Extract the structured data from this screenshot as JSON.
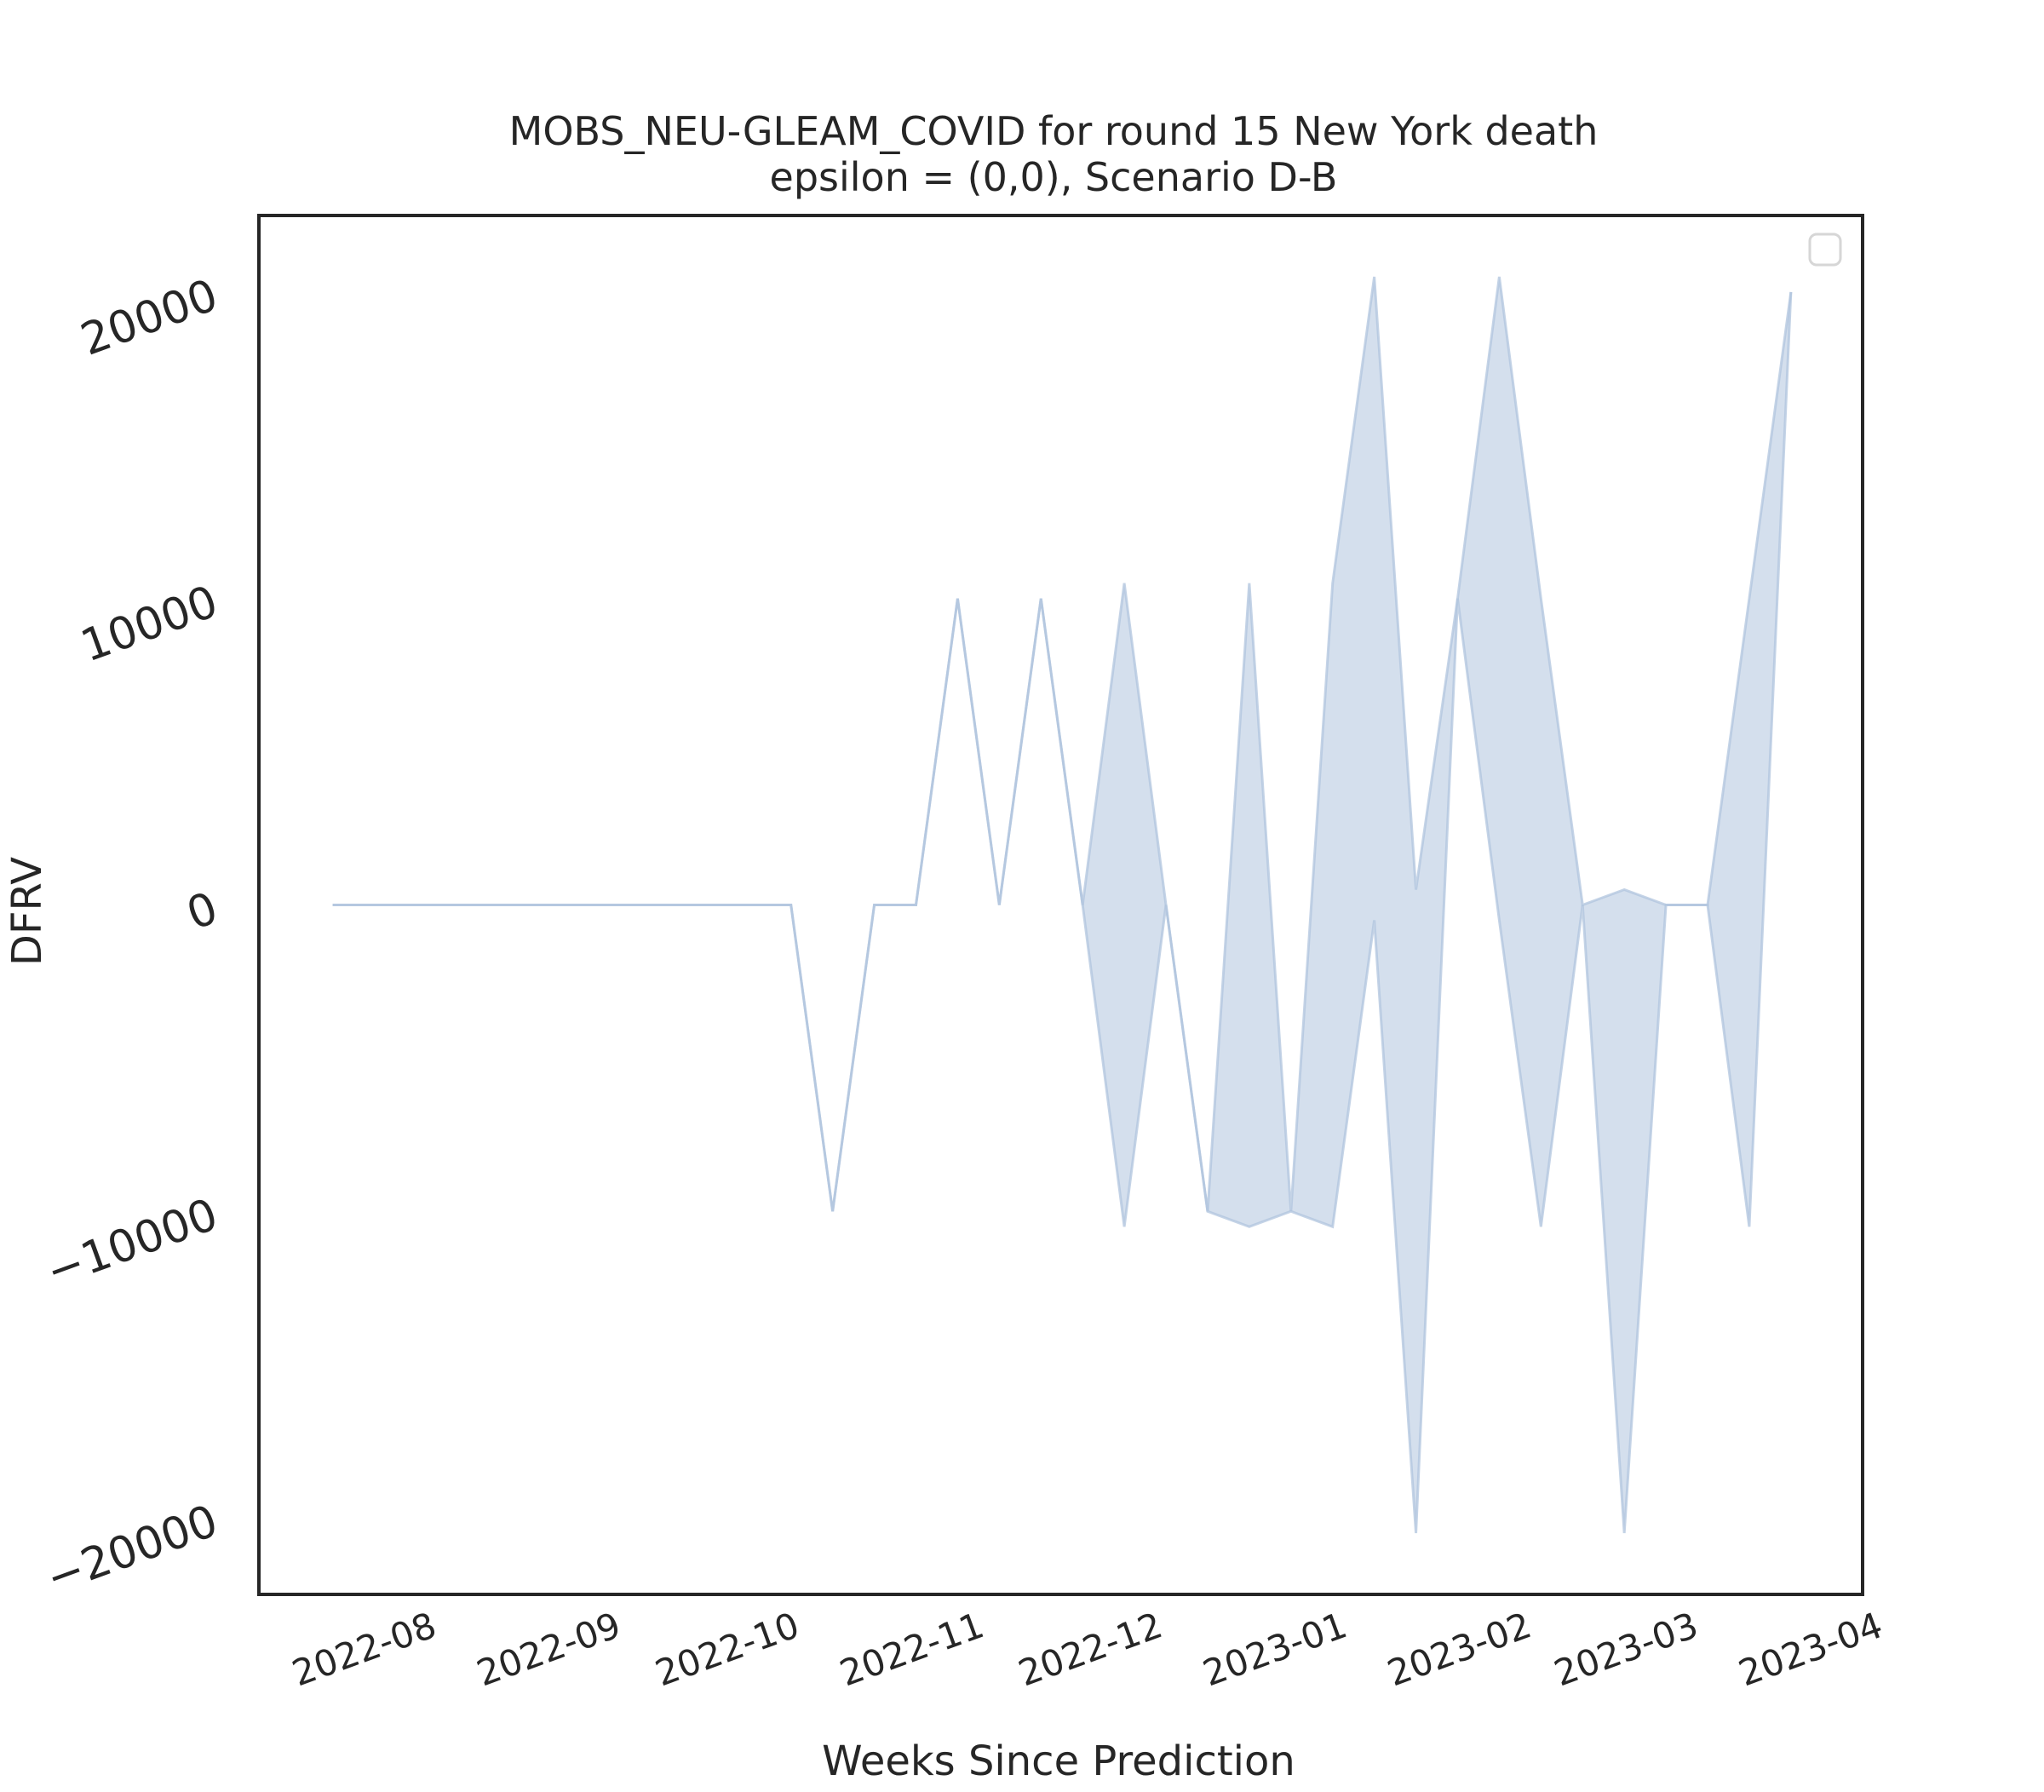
{
  "chart_data": {
    "type": "area",
    "title": "MOBS_NEU-GLEAM_COVID for round 15 New York death",
    "subtitle": "epsilon = (0,0), Scenario D-B",
    "x_label": "Weeks Since Prediction",
    "y_label": "DFRV",
    "x": [
      0,
      1,
      2,
      3,
      4,
      5,
      6,
      7,
      8,
      9,
      10,
      11,
      12,
      13,
      14,
      15,
      16,
      17,
      18,
      19,
      20,
      21,
      22,
      23,
      24,
      25,
      26,
      27,
      28,
      29,
      30,
      31,
      32,
      33,
      34,
      35
    ],
    "series": [
      {
        "color": "#b0c4de",
        "values": [
          0,
          0,
          0,
          0,
          0,
          0,
          0,
          0,
          0,
          0,
          0,
          0,
          -10000,
          0,
          0,
          10000,
          0,
          10000,
          0,
          10500,
          0,
          -10000,
          10500,
          -10000,
          10500,
          20500,
          500,
          10000,
          20500,
          10000,
          0,
          500,
          0,
          0,
          10000,
          20000
        ]
      },
      {
        "color": "#b0c4de",
        "values": [
          0,
          0,
          0,
          0,
          0,
          0,
          0,
          0,
          0,
          0,
          0,
          0,
          -10000,
          0,
          0,
          10000,
          0,
          10000,
          0,
          -10500,
          0,
          -10000,
          -10500,
          -10000,
          -10500,
          -500,
          -20500,
          10000,
          -500,
          -10500,
          0,
          -20500,
          0,
          0,
          -10500,
          20000
        ]
      }
    ],
    "xlim": [
      -1.77,
      36.72
    ],
    "xticks": [
      {
        "value": 0.857,
        "label": "2022-08"
      },
      {
        "value": 5.286,
        "label": "2022-09"
      },
      {
        "value": 9.571,
        "label": "2022-10"
      },
      {
        "value": 14,
        "label": "2022-11"
      },
      {
        "value": 18.286,
        "label": "2022-12"
      },
      {
        "value": 22.714,
        "label": "2023-01"
      },
      {
        "value": 27.143,
        "label": "2023-02"
      },
      {
        "value": 31.143,
        "label": "2023-03"
      },
      {
        "value": 35.571,
        "label": "2023-04"
      }
    ],
    "ylim": [
      -22500,
      22500
    ],
    "yticks": [
      {
        "value": -20000,
        "label": "−20000"
      },
      {
        "value": -10000,
        "label": "−10000"
      },
      0,
      10000,
      20000
    ],
    "legend": "upper right",
    "grid": false
  }
}
